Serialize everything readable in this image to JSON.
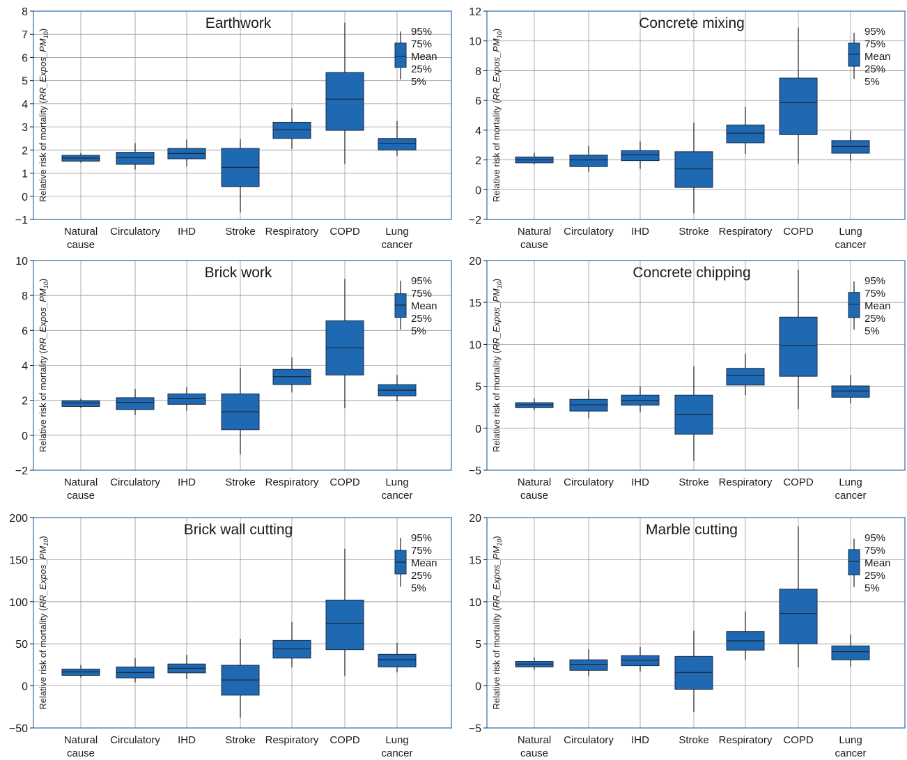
{
  "figure": {
    "colors": {
      "box_fill": "#1f69b3",
      "box_edge": "#1a2a44",
      "frame": "#2b6cb0",
      "grid": "#9a9a9a",
      "text": "#1a1a1a"
    },
    "legend_labels": [
      "95%",
      "75%",
      "Mean",
      "25%",
      "5%"
    ],
    "legend_placement": "top-right"
  },
  "chart_data": [
    {
      "type": "box",
      "title": "Earthwork",
      "ylabel_plain": "Relative risk of mortality (",
      "ylabel_italic": "RR_Expos_PM",
      "ylabel_sub": "10",
      "ylabel_close": ")",
      "categories": [
        "Natural|cause",
        "Circulatory",
        "IHD",
        "Stroke",
        "Respiratory",
        "COPD",
        "Lung|cancer"
      ],
      "ylim": [
        -1,
        8
      ],
      "yticks": [
        -1,
        0,
        1,
        2,
        3,
        4,
        5,
        6,
        7,
        8
      ],
      "ytick_labels": [
        "−1",
        "0",
        "1",
        "2",
        "3",
        "4",
        "5",
        "6",
        "7",
        "8"
      ],
      "grid": true,
      "boxes": [
        {
          "p5": 1.45,
          "p25": 1.52,
          "mean": 1.65,
          "p75": 1.77,
          "p95": 1.87
        },
        {
          "p5": 1.15,
          "p25": 1.38,
          "mean": 1.67,
          "p75": 1.9,
          "p95": 2.3
        },
        {
          "p5": 1.3,
          "p25": 1.62,
          "mean": 1.85,
          "p75": 2.07,
          "p95": 2.45
        },
        {
          "p5": -0.7,
          "p25": 0.42,
          "mean": 1.25,
          "p75": 2.07,
          "p95": 2.47
        },
        {
          "p5": 2.05,
          "p25": 2.5,
          "mean": 2.87,
          "p75": 3.2,
          "p95": 3.8
        },
        {
          "p5": 1.4,
          "p25": 2.85,
          "mean": 4.2,
          "p75": 5.35,
          "p95": 7.5
        },
        {
          "p5": 1.75,
          "p25": 2.0,
          "mean": 2.28,
          "p75": 2.5,
          "p95": 3.25
        }
      ],
      "legend_box": {
        "p5": 5.05,
        "p25": 5.57,
        "mean": 6.05,
        "p75": 6.62,
        "p95": 7.12
      }
    },
    {
      "type": "box",
      "title": "Concrete mixing",
      "ylabel_plain": "Relative risk of mortality (",
      "ylabel_italic": "RR_Expos_PM",
      "ylabel_sub": "10",
      "ylabel_close": ")",
      "categories": [
        "Natural|cause",
        "Circulatory",
        "IHD",
        "Stroke",
        "Respiratory",
        "COPD",
        "Lung|cancer"
      ],
      "ylim": [
        -2,
        12
      ],
      "yticks": [
        -2,
        0,
        2,
        4,
        6,
        8,
        10,
        12
      ],
      "ytick_labels": [
        "−2",
        "0",
        "2",
        "4",
        "6",
        "8",
        "10",
        "12"
      ],
      "grid": true,
      "boxes": [
        {
          "p5": 1.7,
          "p25": 1.8,
          "mean": 2.0,
          "p75": 2.2,
          "p95": 2.5
        },
        {
          "p5": 1.2,
          "p25": 1.55,
          "mean": 2.0,
          "p75": 2.33,
          "p95": 2.95
        },
        {
          "p5": 1.4,
          "p25": 1.95,
          "mean": 2.35,
          "p75": 2.63,
          "p95": 3.25
        },
        {
          "p5": -1.6,
          "p25": 0.15,
          "mean": 1.4,
          "p75": 2.55,
          "p95": 4.5
        },
        {
          "p5": 2.4,
          "p25": 3.15,
          "mean": 3.8,
          "p75": 4.35,
          "p95": 5.55
        },
        {
          "p5": 1.75,
          "p25": 3.7,
          "mean": 5.85,
          "p75": 7.5,
          "p95": 10.9
        },
        {
          "p5": 1.95,
          "p25": 2.45,
          "mean": 2.9,
          "p75": 3.3,
          "p95": 3.95
        }
      ],
      "legend_box": {
        "p5": 7.45,
        "p25": 8.3,
        "mean": 9.1,
        "p75": 9.85,
        "p95": 10.55
      }
    },
    {
      "type": "box",
      "title": "Brick work",
      "ylabel_plain": "Relative risk of mortality (",
      "ylabel_italic": "RR_Expos_PM",
      "ylabel_sub": "10",
      "ylabel_close": ")",
      "categories": [
        "Natural|cause",
        "Circulatory",
        "IHD",
        "Stroke",
        "Respiratory",
        "COPD",
        "Lung|cancer"
      ],
      "ylim": [
        -2,
        10
      ],
      "yticks": [
        -2,
        0,
        2,
        4,
        6,
        8,
        10
      ],
      "ytick_labels": [
        "−2",
        "0",
        "2",
        "4",
        "6",
        "8",
        "10"
      ],
      "grid": true,
      "boxes": [
        {
          "p5": 1.55,
          "p25": 1.65,
          "mean": 1.85,
          "p75": 1.97,
          "p95": 2.1
        },
        {
          "p5": 1.15,
          "p25": 1.47,
          "mean": 1.88,
          "p75": 2.15,
          "p95": 2.65
        },
        {
          "p5": 1.4,
          "p25": 1.77,
          "mean": 2.1,
          "p75": 2.37,
          "p95": 2.75
        },
        {
          "p5": -1.1,
          "p25": 0.32,
          "mean": 1.35,
          "p75": 2.37,
          "p95": 3.85
        },
        {
          "p5": 2.45,
          "p25": 2.9,
          "mean": 3.35,
          "p75": 3.77,
          "p95": 4.45
        },
        {
          "p5": 1.55,
          "p25": 3.45,
          "mean": 5.0,
          "p75": 6.55,
          "p95": 8.95
        },
        {
          "p5": 1.95,
          "p25": 2.25,
          "mean": 2.58,
          "p75": 2.9,
          "p95": 3.45
        }
      ],
      "legend_box": {
        "p5": 6.05,
        "p25": 6.75,
        "mean": 7.45,
        "p75": 8.1,
        "p95": 8.85
      }
    },
    {
      "type": "box",
      "title": "Concrete chipping",
      "ylabel_plain": "Relative risk of mortality (",
      "ylabel_italic": "RR_Expos_PM",
      "ylabel_sub": "10",
      "ylabel_close": ")",
      "categories": [
        "Natural|cause",
        "Circulatory",
        "IHD",
        "Stroke",
        "Respiratory",
        "COPD",
        "Lung|cancer"
      ],
      "ylim": [
        -5,
        20
      ],
      "yticks": [
        -5,
        0,
        5,
        10,
        15,
        20
      ],
      "ytick_labels": [
        "−5",
        "0",
        "5",
        "10",
        "15",
        "20"
      ],
      "grid": true,
      "boxes": [
        {
          "p5": 2.15,
          "p25": 2.45,
          "mean": 2.8,
          "p75": 3.05,
          "p95": 3.55
        },
        {
          "p5": 1.2,
          "p25": 2.05,
          "mean": 2.8,
          "p75": 3.45,
          "p95": 4.6
        },
        {
          "p5": 1.9,
          "p25": 2.75,
          "mean": 3.35,
          "p75": 3.95,
          "p95": 4.95
        },
        {
          "p5": -3.9,
          "p25": -0.7,
          "mean": 1.6,
          "p75": 3.95,
          "p95": 7.4
        },
        {
          "p5": 3.95,
          "p25": 5.15,
          "mean": 6.25,
          "p75": 7.15,
          "p95": 8.9
        },
        {
          "p5": 2.3,
          "p25": 6.2,
          "mean": 9.85,
          "p75": 13.25,
          "p95": 18.9
        },
        {
          "p5": 2.95,
          "p25": 3.7,
          "mean": 4.45,
          "p75": 5.05,
          "p95": 6.35
        }
      ],
      "legend_box": {
        "p5": 11.75,
        "p25": 13.2,
        "mean": 14.8,
        "p75": 16.2,
        "p95": 17.5
      }
    },
    {
      "type": "box",
      "title": "Brick wall cutting",
      "ylabel_plain": "Relative risk of mortality (",
      "ylabel_italic": "RR_Expos_PM",
      "ylabel_sub": "10",
      "ylabel_close": ")",
      "categories": [
        "Natural|cause",
        "Circulatory",
        "IHD",
        "Stroke",
        "Respiratory",
        "COPD",
        "Lung|cancer"
      ],
      "ylim": [
        -50,
        200
      ],
      "yticks": [
        -50,
        0,
        50,
        100,
        150,
        200
      ],
      "ytick_labels": [
        "−50",
        "0",
        "50",
        "100",
        "150",
        "200"
      ],
      "grid": true,
      "boxes": [
        {
          "p5": 10,
          "p25": 12.5,
          "mean": 16.5,
          "p75": 20,
          "p95": 25
        },
        {
          "p5": 4,
          "p25": 9.5,
          "mean": 16,
          "p75": 22.5,
          "p95": 33
        },
        {
          "p5": 8,
          "p25": 15.5,
          "mean": 21,
          "p75": 26,
          "p95": 37
        },
        {
          "p5": -38,
          "p25": -11,
          "mean": 7,
          "p75": 24.5,
          "p95": 56
        },
        {
          "p5": 22,
          "p25": 33,
          "mean": 44,
          "p75": 54,
          "p95": 76
        },
        {
          "p5": 12,
          "p25": 43,
          "mean": 74,
          "p75": 102,
          "p95": 163
        },
        {
          "p5": 16,
          "p25": 22.5,
          "mean": 31,
          "p75": 37.5,
          "p95": 51
        }
      ],
      "legend_box": {
        "p5": 118,
        "p25": 133,
        "mean": 147,
        "p75": 161,
        "p95": 176
      }
    },
    {
      "type": "box",
      "title": "Marble cutting",
      "ylabel_plain": "Relative risk of mortality (",
      "ylabel_italic": "RR_Expos_PM",
      "ylabel_sub": "10",
      "ylabel_close": ")",
      "categories": [
        "Natural|cause",
        "Circulatory",
        "IHD",
        "Stroke",
        "Respiratory",
        "COPD",
        "Lung|cancer"
      ],
      "ylim": [
        -5,
        20
      ],
      "yticks": [
        -5,
        0,
        5,
        10,
        15,
        20
      ],
      "ytick_labels": [
        "−5",
        "0",
        "5",
        "10",
        "15",
        "20"
      ],
      "grid": true,
      "boxes": [
        {
          "p5": 1.9,
          "p25": 2.25,
          "mean": 2.6,
          "p75": 2.9,
          "p95": 3.4
        },
        {
          "p5": 1.15,
          "p25": 1.85,
          "mean": 2.55,
          "p75": 3.1,
          "p95": 4.35
        },
        {
          "p5": 1.7,
          "p25": 2.4,
          "mean": 3.05,
          "p75": 3.6,
          "p95": 4.6
        },
        {
          "p5": -3.1,
          "p25": -0.4,
          "mean": 1.6,
          "p75": 3.5,
          "p95": 6.55
        },
        {
          "p5": 3.1,
          "p25": 4.25,
          "mean": 5.35,
          "p75": 6.45,
          "p95": 8.85
        },
        {
          "p5": 2.2,
          "p25": 5.0,
          "mean": 8.6,
          "p75": 11.5,
          "p95": 18.95
        },
        {
          "p5": 2.3,
          "p25": 3.1,
          "mean": 4.05,
          "p75": 4.75,
          "p95": 6.1
        }
      ],
      "legend_box": {
        "p5": 11.75,
        "p25": 13.2,
        "mean": 14.8,
        "p75": 16.2,
        "p95": 17.5
      }
    }
  ]
}
